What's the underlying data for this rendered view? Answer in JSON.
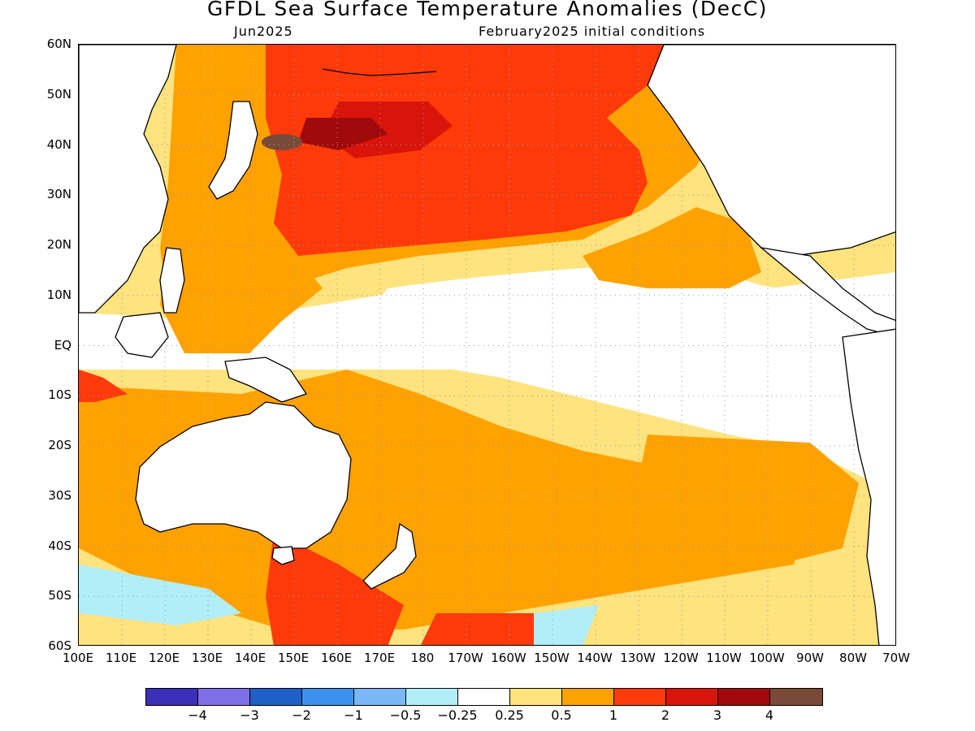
{
  "title": "GFDL Sea Surface Temperature Anomalies (DecC)",
  "subtitle_left": "Jun2025",
  "subtitle_right": "February2025 initial conditions",
  "lat_labels": [
    "60N",
    "50N",
    "40N",
    "30N",
    "20N",
    "10N",
    "EQ",
    "10S",
    "20S",
    "30S",
    "40S",
    "50S",
    "60S"
  ],
  "lon_labels": [
    "100E",
    "110E",
    "120E",
    "130E",
    "140E",
    "150E",
    "160E",
    "170E",
    "180",
    "170W",
    "160W",
    "150W",
    "140W",
    "130W",
    "120W",
    "110W",
    "100W",
    "90W",
    "80W",
    "70W"
  ],
  "colorbar": {
    "colors": [
      "#3a2fb6",
      "#7f6fe6",
      "#1f5fc6",
      "#3f90ee",
      "#7bb6f6",
      "#b2eef8",
      "#ffffff",
      "#ffe37e",
      "#ffa200",
      "#ff3a0a",
      "#d9140a",
      "#a10a0a",
      "#7a4a38"
    ],
    "labels": [
      "-4",
      "-3",
      "-2",
      "-1",
      "-0.5",
      "-0.25",
      "0.25",
      "0.5",
      "1",
      "2",
      "3",
      "4"
    ]
  },
  "map": {
    "lon_range": [
      100,
      290
    ],
    "lat_range": [
      -60,
      60
    ],
    "grid_spacing_deg": 10
  }
}
